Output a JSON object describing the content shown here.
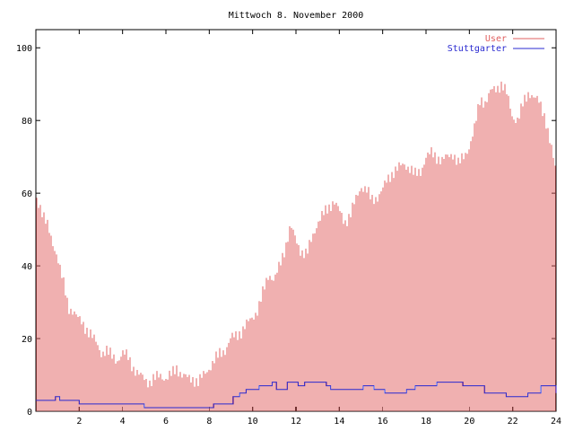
{
  "chart_data": {
    "type": "bar",
    "title": "Mittwoch 8. November 2000",
    "xlabel": "",
    "ylabel": "",
    "xlim": [
      0,
      24
    ],
    "ylim": [
      0,
      105
    ],
    "xticks": [
      "2",
      "4",
      "6",
      "8",
      "10",
      "12",
      "14",
      "16",
      "18",
      "20",
      "22",
      "24"
    ],
    "yticks": [
      "0",
      "20",
      "40",
      "60",
      "80",
      "100"
    ],
    "legend_position": "top-right",
    "colors": {
      "User": "#e06060",
      "Stuttgarter": "#2a2ad0",
      "frame": "#000000"
    },
    "series": [
      {
        "name": "User",
        "style": "impulses",
        "values": [
          [
            0,
            58
          ],
          [
            0.25,
            56
          ],
          [
            0.5,
            52
          ],
          [
            0.75,
            46
          ],
          [
            1,
            43
          ],
          [
            1.25,
            36
          ],
          [
            1.5,
            28
          ],
          [
            1.75,
            28
          ],
          [
            2,
            25
          ],
          [
            2.25,
            23
          ],
          [
            2.5,
            22
          ],
          [
            2.75,
            19
          ],
          [
            3,
            16
          ],
          [
            3.25,
            17
          ],
          [
            3.5,
            15
          ],
          [
            3.75,
            14
          ],
          [
            4,
            16
          ],
          [
            4.25,
            15
          ],
          [
            4.5,
            12
          ],
          [
            4.75,
            10
          ],
          [
            5,
            9
          ],
          [
            5.25,
            8
          ],
          [
            5.5,
            9
          ],
          [
            5.75,
            10
          ],
          [
            6,
            9
          ],
          [
            6.25,
            10
          ],
          [
            6.5,
            12
          ],
          [
            6.75,
            10
          ],
          [
            7,
            9
          ],
          [
            7.25,
            9
          ],
          [
            7.5,
            8
          ],
          [
            7.75,
            10
          ],
          [
            8,
            12
          ],
          [
            8.25,
            14
          ],
          [
            8.5,
            16
          ],
          [
            8.75,
            17
          ],
          [
            9,
            20
          ],
          [
            9.25,
            21
          ],
          [
            9.5,
            22
          ],
          [
            9.75,
            24
          ],
          [
            10,
            26
          ],
          [
            10.25,
            28
          ],
          [
            10.5,
            33
          ],
          [
            10.75,
            38
          ],
          [
            11,
            36
          ],
          [
            11.25,
            40
          ],
          [
            11.5,
            45
          ],
          [
            11.75,
            51
          ],
          [
            12,
            47
          ],
          [
            12.25,
            44
          ],
          [
            12.5,
            43
          ],
          [
            12.75,
            48
          ],
          [
            13,
            52
          ],
          [
            13.25,
            54
          ],
          [
            13.5,
            56
          ],
          [
            13.75,
            58
          ],
          [
            14,
            55
          ],
          [
            14.25,
            52
          ],
          [
            14.5,
            54
          ],
          [
            14.75,
            58
          ],
          [
            15,
            62
          ],
          [
            15.25,
            61
          ],
          [
            15.5,
            58
          ],
          [
            15.75,
            59
          ],
          [
            16,
            61
          ],
          [
            16.25,
            64
          ],
          [
            16.5,
            66
          ],
          [
            16.75,
            67
          ],
          [
            17,
            68
          ],
          [
            17.25,
            67
          ],
          [
            17.5,
            65
          ],
          [
            17.75,
            66
          ],
          [
            18,
            70
          ],
          [
            18.25,
            71
          ],
          [
            18.5,
            70
          ],
          [
            18.75,
            69
          ],
          [
            19,
            70
          ],
          [
            19.25,
            71
          ],
          [
            19.5,
            68
          ],
          [
            19.75,
            70
          ],
          [
            20,
            73
          ],
          [
            20.25,
            78
          ],
          [
            20.5,
            86
          ],
          [
            20.75,
            85
          ],
          [
            21,
            88
          ],
          [
            21.25,
            89
          ],
          [
            21.5,
            90
          ],
          [
            21.75,
            87
          ],
          [
            22,
            81
          ],
          [
            22.25,
            80
          ],
          [
            22.5,
            85
          ],
          [
            22.75,
            88
          ],
          [
            23,
            86
          ],
          [
            23.25,
            85
          ],
          [
            23.5,
            81
          ],
          [
            23.75,
            73
          ],
          [
            24,
            66
          ]
        ]
      },
      {
        "name": "Stuttgarter",
        "style": "steps",
        "values": [
          [
            0,
            3
          ],
          [
            0.8,
            3
          ],
          [
            0.9,
            4
          ],
          [
            1.1,
            3
          ],
          [
            1.9,
            3
          ],
          [
            2,
            2
          ],
          [
            4.9,
            2
          ],
          [
            5,
            1
          ],
          [
            8.1,
            1
          ],
          [
            8.2,
            2
          ],
          [
            8.9,
            2
          ],
          [
            9.1,
            4
          ],
          [
            9.4,
            5
          ],
          [
            9.7,
            6
          ],
          [
            10.3,
            7
          ],
          [
            10.9,
            8
          ],
          [
            11.1,
            6
          ],
          [
            11.6,
            8
          ],
          [
            12.1,
            7
          ],
          [
            12.4,
            8
          ],
          [
            13.4,
            7
          ],
          [
            13.6,
            6
          ],
          [
            14.9,
            6
          ],
          [
            15.1,
            7
          ],
          [
            15.6,
            6
          ],
          [
            16.1,
            5
          ],
          [
            16.9,
            5
          ],
          [
            17.1,
            6
          ],
          [
            17.5,
            7
          ],
          [
            18.3,
            7
          ],
          [
            18.5,
            8
          ],
          [
            19.5,
            8
          ],
          [
            19.7,
            7
          ],
          [
            20.6,
            7
          ],
          [
            20.7,
            5
          ],
          [
            21.5,
            5
          ],
          [
            21.7,
            4
          ],
          [
            22.5,
            4
          ],
          [
            22.7,
            5
          ],
          [
            23.1,
            5
          ],
          [
            23.3,
            7
          ],
          [
            23.9,
            7
          ],
          [
            24,
            5
          ]
        ]
      }
    ]
  }
}
